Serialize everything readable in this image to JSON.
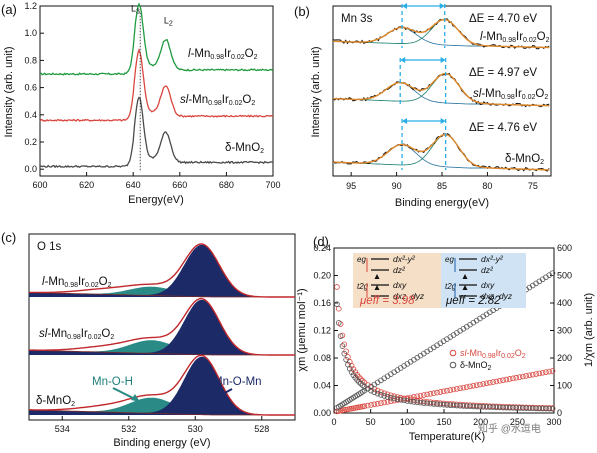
{
  "colors": {
    "green": "#1f9a3f",
    "red": "#d9463e",
    "gray": "#4a4a4a",
    "orange": "#e0892a",
    "navy": "#1c2a68",
    "teal": "#2a8a86",
    "cyan": "#2aaee6",
    "outline": "#c0282b",
    "box_orange": "#f6dfc7",
    "box_blue": "#cfe3f4"
  },
  "watermark": "知乎 @水逗电",
  "chart_data": [
    {
      "id": "a",
      "panel_label": "(a)",
      "type": "line",
      "xlabel": "Energy(eV)",
      "ylabel": "Intensity (arb. unit)",
      "xlim": [
        600,
        700
      ],
      "ylim": [
        -0.05,
        1.2
      ],
      "x_ticks": [
        "600",
        "620",
        "640",
        "660",
        "680",
        "700"
      ],
      "y_ticks": [
        "0.0",
        "0.2",
        "0.4",
        "0.6",
        "0.8",
        "1.0",
        "1.2"
      ],
      "edge_labels": [
        "L3",
        "L2"
      ],
      "edge_positions_eV": [
        642.5,
        654
      ],
      "dotted_line_eV": 643,
      "series": [
        {
          "name": "l-Mn0.98Ir0.02O2",
          "offset": 0.68,
          "peak_l3": 0.48,
          "peak_l2": 0.22
        },
        {
          "name": "sl-Mn0.98Ir0.02O2",
          "offset": 0.34,
          "peak_l3": 0.48,
          "peak_l2": 0.22
        },
        {
          "name": "δ-MnO2",
          "offset": 0.0,
          "peak_l3": 0.48,
          "peak_l2": 0.22
        }
      ],
      "series_colors": [
        "#1f9a3f",
        "#d9463e",
        "#4a4a4a"
      ]
    },
    {
      "id": "b",
      "panel_label": "(b)",
      "title": "Mn 3s",
      "type": "line",
      "xlabel": "Binding energy(eV)",
      "ylabel": "Intensity (arb. unit)",
      "xlim": [
        97,
        73
      ],
      "x_ticks": [
        "95",
        "90",
        "85",
        "80",
        "75"
      ],
      "series": [
        {
          "name": "l-Mn0.98Ir0.02O2",
          "delta_e_label": "ΔE = 4.70 eV",
          "peak_low_eV": 84.7,
          "peak_high_eV": 89.4
        },
        {
          "name": "sl-Mn0.98Ir0.02O2",
          "delta_e_label": "ΔE = 4.97 eV",
          "peak_low_eV": 84.6,
          "peak_high_eV": 89.6
        },
        {
          "name": "δ-MnO2",
          "delta_e_label": "ΔE = 4.76 eV",
          "peak_low_eV": 84.6,
          "peak_high_eV": 89.4
        }
      ]
    },
    {
      "id": "c",
      "panel_label": "(c)",
      "title": "O 1s",
      "type": "area",
      "xlabel": "Binding energy (eV)",
      "xlim": [
        535,
        527
      ],
      "x_ticks": [
        "534",
        "532",
        "530",
        "528"
      ],
      "series": [
        {
          "name": "l-Mn0.98Ir0.02O2"
        },
        {
          "name": "sl-Mn0.98Ir0.02O2"
        },
        {
          "name": "δ-MnO2"
        }
      ],
      "components": [
        {
          "name": "Mn-O-Mn",
          "center_eV": 529.8
        },
        {
          "name": "Mn-O-H",
          "center_eV": 531.3
        }
      ]
    },
    {
      "id": "d",
      "panel_label": "(d)",
      "type": "scatter",
      "xlabel": "Temperature(K)",
      "ylabel_left": "χm (μemu mol⁻¹)",
      "ylabel_right": "1/χm (arb. unit)",
      "xlim": [
        0,
        300
      ],
      "ylim_left": [
        0,
        0.24
      ],
      "ylim_right": [
        0,
        600
      ],
      "x_ticks": [
        "0",
        "50",
        "100",
        "150",
        "200",
        "250",
        "300"
      ],
      "y_ticks_left": [
        "0.00",
        "0.04",
        "0.08",
        "0.12",
        "0.16",
        "0.20",
        "0.24"
      ],
      "y_ticks_right": [
        "0",
        "100",
        "200",
        "300",
        "400",
        "500",
        "600"
      ],
      "legend": [
        "sl-Mn0.98Ir0.02O2",
        "δ-MnO2"
      ],
      "series": [
        {
          "name": "sl-Mn0.98Ir0.02O2",
          "chi_at_2K": 0.22,
          "inv_chi_at_300K": 150
        },
        {
          "name": "δ-MnO2",
          "chi_at_2K": 0.2,
          "inv_chi_at_300K": 500
        }
      ],
      "inset": {
        "left": {
          "mu_label": "μeff = 3.98",
          "eg": "eg",
          "t2g": "t2g",
          "levels": [
            "dx²-y²",
            "dz²",
            "dxy",
            "dxz, dyz"
          ]
        },
        "right": {
          "mu_label": "μeff = 2.82",
          "eg": "eg",
          "t2g": "t2g",
          "levels": [
            "dx²-y²",
            "dz²",
            "dxy",
            "dxz, dyz"
          ]
        }
      }
    }
  ]
}
